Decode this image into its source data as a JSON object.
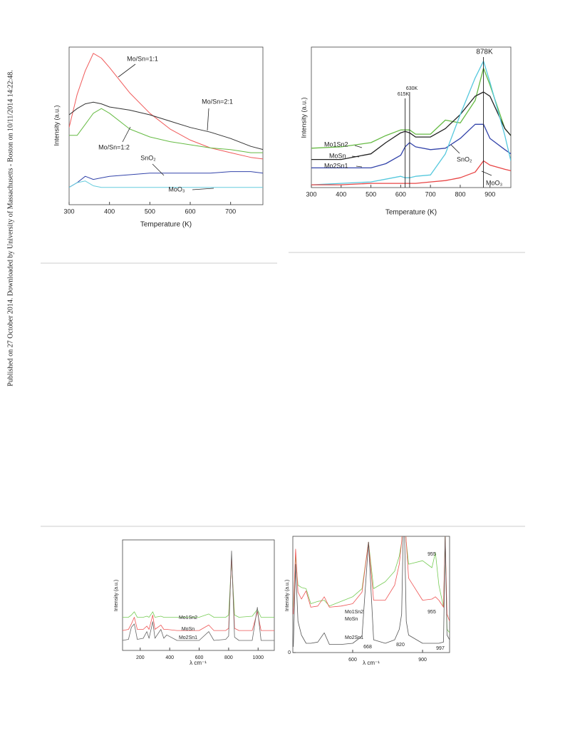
{
  "sidebar": "Published on 27 October 2014. Downloaded by University of Massachusetts - Boston on 10/11/2014 14:22:48.",
  "chart_data": [
    {
      "type": "line",
      "y_label": "Intensity (a.u.)",
      "x_label": "Temperature (K)",
      "xlim": [
        300,
        780
      ],
      "ylim": [
        0,
        100
      ],
      "xticks": [
        300,
        400,
        500,
        600,
        700
      ],
      "x": [
        300,
        320,
        340,
        360,
        380,
        400,
        450,
        500,
        550,
        600,
        650,
        700,
        750,
        780
      ],
      "series": [
        {
          "name": "Mo/Sn=1:1",
          "color": "#f05a5a",
          "values": [
            49,
            70,
            85,
            96,
            93,
            87,
            71,
            58,
            48,
            41,
            36,
            33,
            30,
            29
          ]
        },
        {
          "name": "Mo/Sn=2:1",
          "color": "#333333",
          "values": [
            57,
            61,
            64,
            65,
            64,
            62,
            60,
            57,
            53,
            49,
            46,
            42,
            37,
            35
          ]
        },
        {
          "name": "Mo/Sn=1:2",
          "color": "#66bb44",
          "values": [
            44,
            44,
            51,
            58,
            61,
            58,
            48,
            43,
            40,
            38,
            36,
            35,
            33,
            33
          ]
        },
        {
          "name": "SnO₂",
          "color": "#3344aa",
          "values": [
            11,
            14,
            18,
            16,
            17,
            18,
            19,
            20,
            20,
            20,
            20,
            21,
            21,
            20
          ]
        },
        {
          "name": "MoO₃",
          "color": "#66ccdd",
          "values": [
            11,
            14,
            15,
            12,
            11,
            11,
            11,
            11,
            11,
            11,
            11,
            11,
            11,
            11
          ]
        }
      ]
    },
    {
      "type": "line",
      "y_label": "Intensity (a.u.)",
      "x_label": "Temperature (K)",
      "xlim": [
        300,
        970
      ],
      "ylim": [
        0,
        100
      ],
      "xticks": [
        300,
        400,
        500,
        600,
        700,
        800,
        900
      ],
      "x": [
        300,
        400,
        500,
        550,
        600,
        615,
        630,
        650,
        700,
        750,
        800,
        850,
        878,
        900,
        950,
        970
      ],
      "series": [
        {
          "name": "Mo1Sn2",
          "color": "#66bb44",
          "values": [
            28,
            29,
            32,
            37,
            41,
            41,
            41,
            38,
            38,
            48,
            46,
            62,
            85,
            73,
            42,
            37
          ]
        },
        {
          "name": "MoSn",
          "color": "#222222",
          "values": [
            20,
            20,
            24,
            32,
            39,
            40,
            39,
            36,
            36,
            42,
            52,
            65,
            68,
            65,
            42,
            37
          ]
        },
        {
          "name": "Mo2Sn1",
          "color": "#3344aa",
          "values": [
            14,
            14,
            14,
            17,
            23,
            29,
            32,
            29,
            27,
            28,
            35,
            45,
            45,
            35,
            27,
            24
          ]
        },
        {
          "name": "SnO₂",
          "color": "#55c8dd",
          "values": [
            2,
            3,
            4,
            6,
            8,
            7,
            7,
            8,
            9,
            24,
            52,
            78,
            90,
            75,
            37,
            19
          ]
        },
        {
          "name": "MoO₃",
          "color": "#e84444",
          "values": [
            2,
            2,
            3,
            3,
            3,
            3,
            3,
            3,
            4,
            5,
            7,
            11,
            19,
            16,
            13,
            12
          ]
        }
      ],
      "markers": [
        {
          "value": 615,
          "label": "615K"
        },
        {
          "value": 630,
          "label": "630K"
        },
        {
          "value": 878,
          "label": "878K"
        }
      ]
    },
    {
      "type": "line",
      "y_label": "Intensity (a.u.)",
      "x_label": "λ cm⁻¹",
      "xlim": [
        80,
        1110
      ],
      "ylim": [
        0,
        100
      ],
      "xticks": [
        200,
        400,
        600,
        800,
        1000
      ],
      "x": [
        80,
        120,
        140,
        160,
        180,
        220,
        245,
        260,
        285,
        300,
        340,
        360,
        380,
        450,
        600,
        665,
        700,
        780,
        800,
        820,
        840,
        870,
        960,
        995,
        1020,
        1110
      ],
      "series": [
        {
          "name": "Mo1Sn2",
          "color": "#77cc55",
          "values": [
            30,
            30,
            32,
            35,
            30,
            30,
            31,
            30,
            35,
            30,
            31,
            30,
            30,
            30,
            30,
            33,
            30,
            30,
            32,
            82,
            32,
            30,
            31,
            37,
            30,
            30
          ]
        },
        {
          "name": "MoSn",
          "color": "#ee5555",
          "values": [
            18,
            19,
            24,
            30,
            19,
            19,
            22,
            19,
            32,
            19,
            23,
            19,
            19,
            18,
            18,
            23,
            18,
            18,
            20,
            85,
            20,
            18,
            18,
            35,
            18,
            18
          ]
        },
        {
          "name": "Mo2Sn1",
          "color": "#666666",
          "values": [
            9,
            10,
            21,
            24,
            10,
            11,
            17,
            11,
            26,
            11,
            19,
            11,
            14,
            9,
            9,
            17,
            9,
            10,
            13,
            90,
            12,
            9,
            9,
            39,
            9,
            9
          ]
        }
      ]
    },
    {
      "type": "line",
      "y_label": "Intensity (a.u.)",
      "x_label": "λ cm⁻¹",
      "xlim": [
        343,
        1016
      ],
      "ylim": [
        0,
        100
      ],
      "xticks": [
        600,
        900
      ],
      "yticks": [
        0
      ],
      "x": [
        345,
        355,
        365,
        380,
        400,
        420,
        450,
        478,
        500,
        550,
        600,
        640,
        668,
        690,
        740,
        780,
        800,
        810,
        820,
        830,
        840,
        900,
        940,
        955,
        970,
        990,
        997,
        1005,
        1016
      ],
      "series": [
        {
          "name": "Mo1Sn2",
          "color": "#77cc55",
          "values": [
            39,
            83,
            58,
            56,
            55,
            42,
            44,
            45,
            40,
            44,
            48,
            55,
            95,
            55,
            61,
            70,
            83,
            95,
            130,
            95,
            76,
            79,
            73,
            86,
            58,
            39,
            100,
            20,
            17
          ]
        },
        {
          "name": "MoSn",
          "color": "#ee5555",
          "values": [
            33,
            89,
            52,
            46,
            53,
            39,
            40,
            48,
            39,
            40,
            42,
            52,
            95,
            45,
            45,
            58,
            76,
            95,
            130,
            95,
            64,
            45,
            46,
            48,
            45,
            39,
            100,
            33,
            27
          ]
        },
        {
          "name": "Mo2Sn1",
          "color": "#555555",
          "values": [
            5,
            76,
            27,
            15,
            8,
            8,
            9,
            17,
            7,
            7,
            8,
            14,
            95,
            11,
            8,
            11,
            20,
            33,
            130,
            27,
            15,
            8,
            8,
            8,
            8,
            9,
            100,
            15,
            11
          ]
        }
      ],
      "annotations": [
        "668",
        "820",
        "955",
        "955",
        "997"
      ]
    }
  ]
}
